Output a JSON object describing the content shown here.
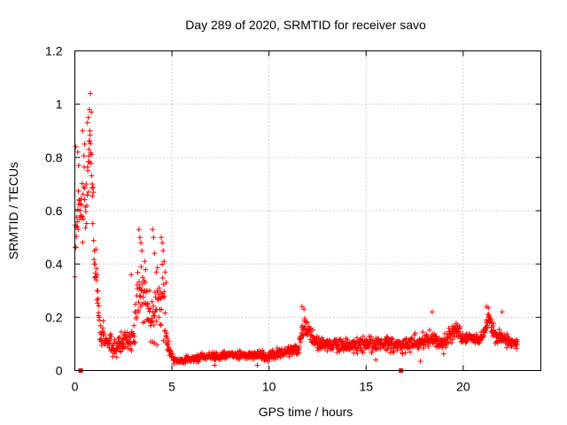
{
  "chart_data": {
    "type": "scatter",
    "title": "Day 289 of 2020, SRMTID for receiver savo",
    "xlabel": "GPS time / hours",
    "ylabel": "SRMTID / TECUs",
    "xlim": [
      0,
      24
    ],
    "ylim": [
      0,
      1.2
    ],
    "xticks": [
      0,
      5,
      10,
      15,
      20
    ],
    "xtick_labels": [
      "0",
      "5",
      "10",
      "15",
      "20"
    ],
    "yticks": [
      0,
      0.2,
      0.4,
      0.6,
      0.8,
      1,
      1.2
    ],
    "ytick_labels": [
      "0",
      "0.2",
      "0.4",
      "0.6",
      "0.8",
      "1",
      "1.2"
    ],
    "grid": true,
    "marker": "+",
    "color": "#ff0000",
    "series": [
      {
        "name": "SRMTID",
        "profile_x": [
          0,
          0.3,
          0.6,
          0.8,
          1.0,
          1.3,
          2,
          3,
          3.3,
          3.6,
          4.0,
          4.3,
          4.5,
          4.7,
          5.0,
          5.3,
          6,
          8,
          10,
          11.5,
          11.8,
          12.5,
          14,
          15,
          16,
          17,
          18,
          19,
          19.6,
          20,
          21,
          21.3,
          21.6,
          22,
          22.8
        ],
        "profile_y": [
          0.5,
          0.62,
          0.68,
          0.88,
          0.45,
          0.15,
          0.09,
          0.12,
          0.3,
          0.28,
          0.17,
          0.28,
          0.3,
          0.12,
          0.05,
          0.035,
          0.045,
          0.06,
          0.055,
          0.08,
          0.17,
          0.1,
          0.09,
          0.1,
          0.1,
          0.09,
          0.12,
          0.1,
          0.16,
          0.12,
          0.12,
          0.2,
          0.14,
          0.12,
          0.1
        ],
        "profile_spread": [
          0.2,
          0.18,
          0.22,
          0.18,
          0.18,
          0.08,
          0.05,
          0.08,
          0.22,
          0.15,
          0.12,
          0.22,
          0.22,
          0.06,
          0.02,
          0.015,
          0.02,
          0.02,
          0.025,
          0.03,
          0.05,
          0.04,
          0.04,
          0.04,
          0.035,
          0.04,
          0.04,
          0.04,
          0.04,
          0.03,
          0.03,
          0.05,
          0.05,
          0.04,
          0.03
        ],
        "x_start": 0.0,
        "x_end": 22.8,
        "x_step": 0.0167,
        "extremes": [
          {
            "x": 0.05,
            "y": 0.84
          },
          {
            "x": 0.15,
            "y": 0.82
          },
          {
            "x": 0.2,
            "y": 0.77
          },
          {
            "x": 0.4,
            "y": 0.9
          },
          {
            "x": 0.5,
            "y": 0.85
          },
          {
            "x": 0.65,
            "y": 0.93
          },
          {
            "x": 0.7,
            "y": 0.95
          },
          {
            "x": 0.75,
            "y": 0.98
          },
          {
            "x": 0.8,
            "y": 1.04
          },
          {
            "x": 0.85,
            "y": 0.97
          },
          {
            "x": 0.78,
            "y": 0.9
          },
          {
            "x": 0.72,
            "y": 0.83
          },
          {
            "x": 0.9,
            "y": 0.7
          },
          {
            "x": 1.0,
            "y": 0.4
          },
          {
            "x": 1.1,
            "y": 0.35
          },
          {
            "x": 3.3,
            "y": 0.53
          },
          {
            "x": 3.35,
            "y": 0.5
          },
          {
            "x": 3.4,
            "y": 0.48
          },
          {
            "x": 3.45,
            "y": 0.45
          },
          {
            "x": 3.6,
            "y": 0.41
          },
          {
            "x": 4.0,
            "y": 0.53
          },
          {
            "x": 4.05,
            "y": 0.5
          },
          {
            "x": 4.1,
            "y": 0.44
          },
          {
            "x": 4.2,
            "y": 0.37
          },
          {
            "x": 4.45,
            "y": 0.5
          },
          {
            "x": 4.5,
            "y": 0.48
          },
          {
            "x": 4.55,
            "y": 0.45
          },
          {
            "x": 4.6,
            "y": 0.41
          },
          {
            "x": 4.65,
            "y": 0.37
          },
          {
            "x": 4.7,
            "y": 0.33
          },
          {
            "x": 1.2,
            "y": 0.27
          },
          {
            "x": 1.15,
            "y": 0.3
          },
          {
            "x": 2.9,
            "y": 0.36
          },
          {
            "x": 11.7,
            "y": 0.24
          },
          {
            "x": 11.8,
            "y": 0.23
          },
          {
            "x": 18.4,
            "y": 0.22
          },
          {
            "x": 21.2,
            "y": 0.24
          },
          {
            "x": 21.3,
            "y": 0.235
          },
          {
            "x": 22.0,
            "y": 0.22
          },
          {
            "x": 5.1,
            "y": 0.025
          },
          {
            "x": 7.2,
            "y": 0.02
          },
          {
            "x": 9.4,
            "y": 0.02
          },
          {
            "x": 17.8,
            "y": 0.035
          },
          {
            "x": 15.5,
            "y": 0.04
          }
        ],
        "zero_markers": [
          0.3,
          16.8
        ]
      }
    ]
  }
}
